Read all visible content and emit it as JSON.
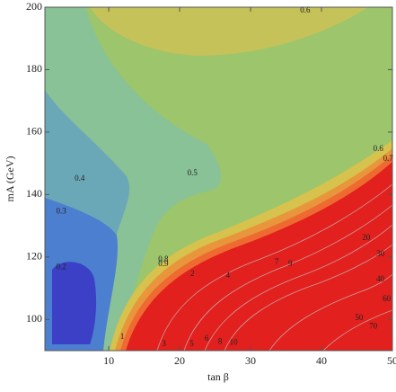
{
  "chart_data": {
    "type": "contour",
    "xlabel": "tan β",
    "ylabel": "mA (GeV)",
    "xlim": [
      1,
      50
    ],
    "ylim": [
      90,
      200
    ],
    "xticks": [
      10,
      20,
      30,
      40,
      50
    ],
    "yticks": [
      100,
      120,
      140,
      160,
      180,
      200
    ],
    "contour_labels": [
      {
        "value": 0.6,
        "x": 37.7,
        "y": 198.8
      },
      {
        "value": 0.5,
        "x": 21.8,
        "y": 146.8
      },
      {
        "value": 0.4,
        "x": 5.9,
        "y": 145.0
      },
      {
        "value": 0.3,
        "x": 3.3,
        "y": 134.5
      },
      {
        "value": 0.2,
        "x": 3.3,
        "y": 116.7
      },
      {
        "value": 0.6,
        "x": 48.0,
        "y": 154.5
      },
      {
        "value": 0.7,
        "x": 49.4,
        "y": 151.4
      },
      {
        "value": 0.8,
        "x": 17.7,
        "y": 119.1
      },
      {
        "value": 0.9,
        "x": 17.7,
        "y": 117.6
      },
      {
        "value": 1,
        "x": 11.9,
        "y": 94.4
      },
      {
        "value": 2,
        "x": 21.8,
        "y": 114.5
      },
      {
        "value": 3,
        "x": 17.8,
        "y": 92.1
      },
      {
        "value": 4,
        "x": 26.8,
        "y": 113.9
      },
      {
        "value": 5,
        "x": 21.7,
        "y": 92.1
      },
      {
        "value": 6,
        "x": 23.8,
        "y": 93.8
      },
      {
        "value": 7,
        "x": 33.7,
        "y": 118.3
      },
      {
        "value": 8,
        "x": 25.7,
        "y": 92.7
      },
      {
        "value": 9,
        "x": 35.6,
        "y": 117.7
      },
      {
        "value": 10,
        "x": 27.6,
        "y": 92.4
      },
      {
        "value": 20,
        "x": 46.3,
        "y": 126.0
      },
      {
        "value": 30,
        "x": 48.3,
        "y": 120.9
      },
      {
        "value": 40,
        "x": 48.3,
        "y": 112.8
      },
      {
        "value": 50,
        "x": 45.3,
        "y": 100.4
      },
      {
        "value": 60,
        "x": 49.2,
        "y": 106.4
      },
      {
        "value": 70,
        "x": 47.3,
        "y": 97.7
      }
    ]
  }
}
